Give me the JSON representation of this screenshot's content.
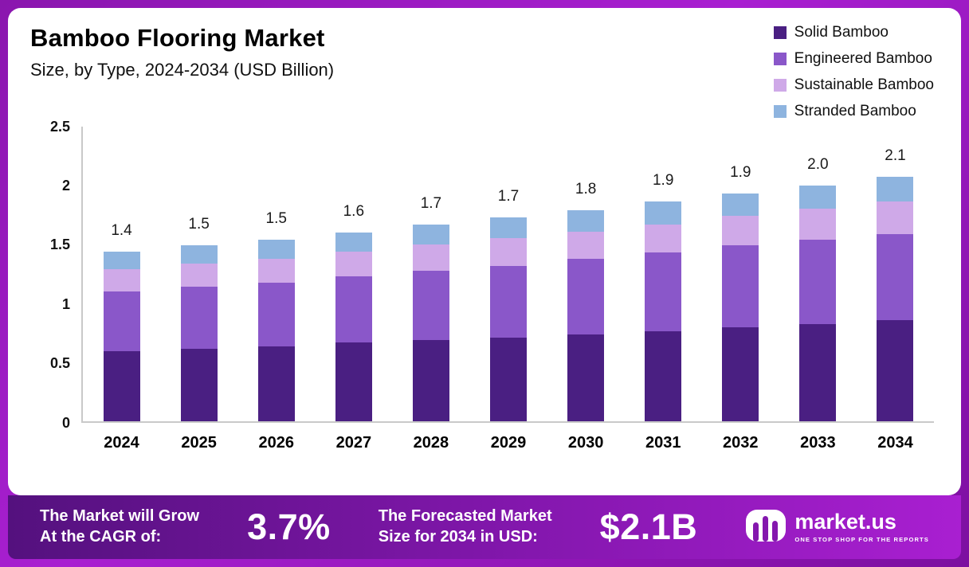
{
  "header": {
    "title": "Bamboo Flooring Market",
    "subtitle": "Size, by Type, 2024-2034 (USD Billion)"
  },
  "legend": [
    {
      "label": "Solid Bamboo",
      "color": "#4a1f82"
    },
    {
      "label": "Engineered Bamboo",
      "color": "#8a57c9"
    },
    {
      "label": "Sustainable Bamboo",
      "color": "#cfa9e8"
    },
    {
      "label": "Stranded Bamboo",
      "color": "#8eb4df"
    }
  ],
  "chart_data": {
    "type": "bar",
    "stacked": true,
    "title": "Bamboo Flooring Market",
    "subtitle": "Size, by Type, 2024-2034 (USD Billion)",
    "unit": "USD Billion",
    "categories": [
      "2024",
      "2025",
      "2026",
      "2027",
      "2028",
      "2029",
      "2030",
      "2031",
      "2032",
      "2033",
      "2034"
    ],
    "series": [
      {
        "name": "Solid Bamboo",
        "color": "#4a1f82",
        "values": [
          0.59,
          0.61,
          0.63,
          0.66,
          0.68,
          0.7,
          0.73,
          0.76,
          0.79,
          0.82,
          0.85
        ]
      },
      {
        "name": "Engineered Bamboo",
        "color": "#8a57c9",
        "values": [
          0.5,
          0.52,
          0.54,
          0.56,
          0.59,
          0.61,
          0.64,
          0.66,
          0.69,
          0.71,
          0.73
        ]
      },
      {
        "name": "Sustainable Bamboo",
        "color": "#cfa9e8",
        "values": [
          0.19,
          0.2,
          0.2,
          0.21,
          0.22,
          0.23,
          0.23,
          0.24,
          0.25,
          0.26,
          0.27
        ]
      },
      {
        "name": "Stranded Bamboo",
        "color": "#8eb4df",
        "values": [
          0.15,
          0.15,
          0.16,
          0.16,
          0.17,
          0.18,
          0.18,
          0.19,
          0.19,
          0.2,
          0.21
        ]
      }
    ],
    "totals": [
      "1.4",
      "1.5",
      "1.5",
      "1.6",
      "1.7",
      "1.7",
      "1.8",
      "1.9",
      "1.9",
      "2.0",
      "2.1"
    ],
    "ylim": [
      0,
      2.5
    ],
    "yticks": [
      {
        "label": "2.5",
        "value": 2.5
      },
      {
        "label": "2",
        "value": 2.0
      },
      {
        "label": "1.5",
        "value": 1.5
      },
      {
        "label": "1",
        "value": 1.0
      },
      {
        "label": "0.5",
        "value": 0.5
      },
      {
        "label": "0",
        "value": 0.0
      }
    ],
    "legend_position": "top-right",
    "grid": false
  },
  "footer": {
    "cagr_label_line1": "The Market will Grow",
    "cagr_label_line2": "At the CAGR of:",
    "cagr_value": "3.7%",
    "forecast_label_line1": "The Forecasted Market",
    "forecast_label_line2": "Size for 2034 in USD:",
    "forecast_value": "$2.1B",
    "brand": {
      "name": "market.us",
      "tagline": "ONE STOP SHOP FOR THE REPORTS"
    }
  },
  "colors": {
    "frame": "#a91fd1",
    "footer_gradient_start": "#54117e",
    "footer_gradient_end": "#a91fd1",
    "axis_line": "#c9c9c9",
    "text": "#111111"
  }
}
